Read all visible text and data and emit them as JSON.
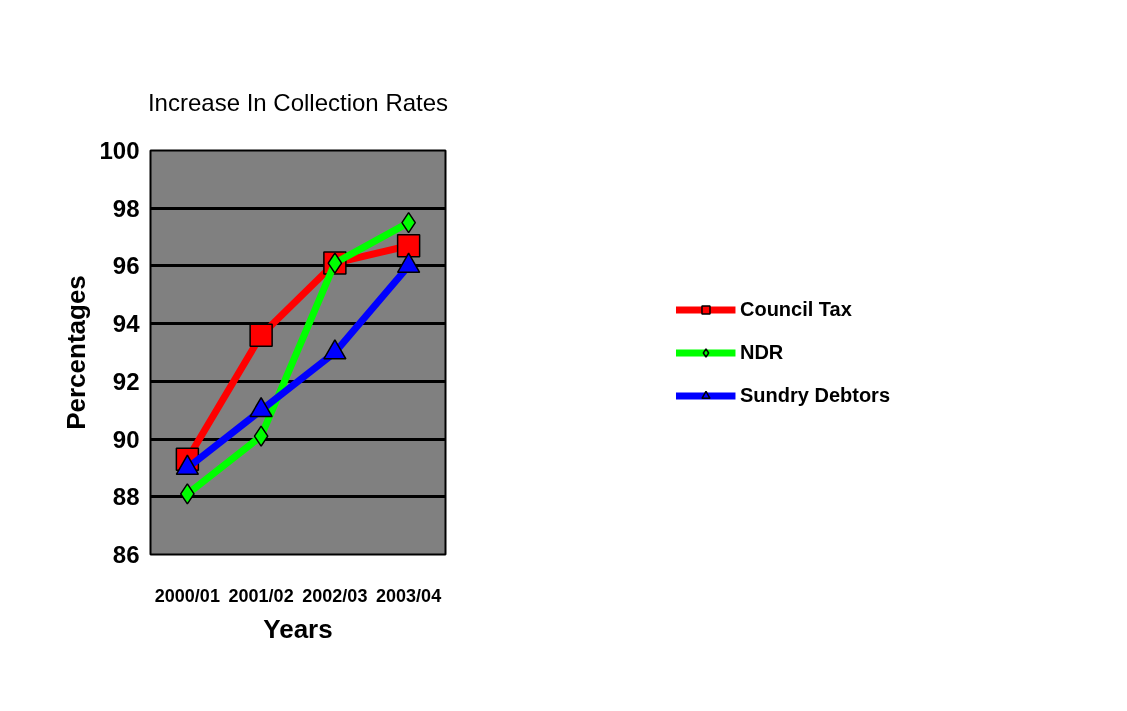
{
  "chart_data": {
    "type": "line",
    "title": "Increase In Collection Rates",
    "xlabel": "Years",
    "ylabel": "Percentages",
    "categories": [
      "2000/01",
      "2001/02",
      "2002/03",
      "2003/04"
    ],
    "series": [
      {
        "name": "Council Tax",
        "color": "#ff0000",
        "marker": "square",
        "values": [
          89.3,
          93.6,
          96.1,
          96.7
        ]
      },
      {
        "name": "NDR",
        "color": "#00ff00",
        "marker": "diamond",
        "values": [
          88.1,
          90.1,
          96.1,
          97.5
        ]
      },
      {
        "name": "Sundry Debtors",
        "color": "#0000ff",
        "marker": "triangle",
        "values": [
          89.0,
          91.0,
          93.0,
          96.0
        ]
      }
    ],
    "ylim": [
      86,
      100
    ],
    "yticks": [
      86,
      88,
      90,
      92,
      94,
      96,
      98,
      100
    ],
    "grid": "y",
    "legend": "right"
  }
}
